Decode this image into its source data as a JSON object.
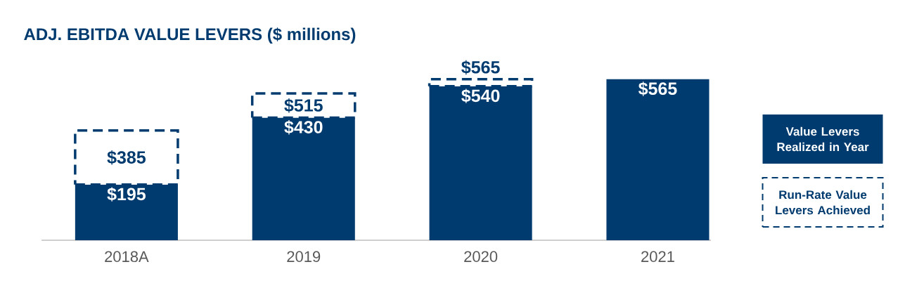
{
  "chart_data": {
    "type": "bar",
    "title": "ADJ. EBITDA VALUE LEVERS ($ millions)",
    "categories": [
      "2018A",
      "2019",
      "2020",
      "2021"
    ],
    "stacked": true,
    "totals": [
      "$385",
      "$515",
      "$565",
      null
    ],
    "legend": "right",
    "series": [
      {
        "name": "Value Levers Realized in Year",
        "color": "#003b6f",
        "values": [
          195,
          430,
          540,
          565
        ],
        "value_labels": [
          "$195",
          "$430",
          "$540",
          "$565"
        ]
      },
      {
        "name": "Run-Rate Value Levers Achieved",
        "color": "#003b6f",
        "line_style": "dashed",
        "values": [
          190,
          85,
          25,
          null
        ]
      }
    ]
  }
}
